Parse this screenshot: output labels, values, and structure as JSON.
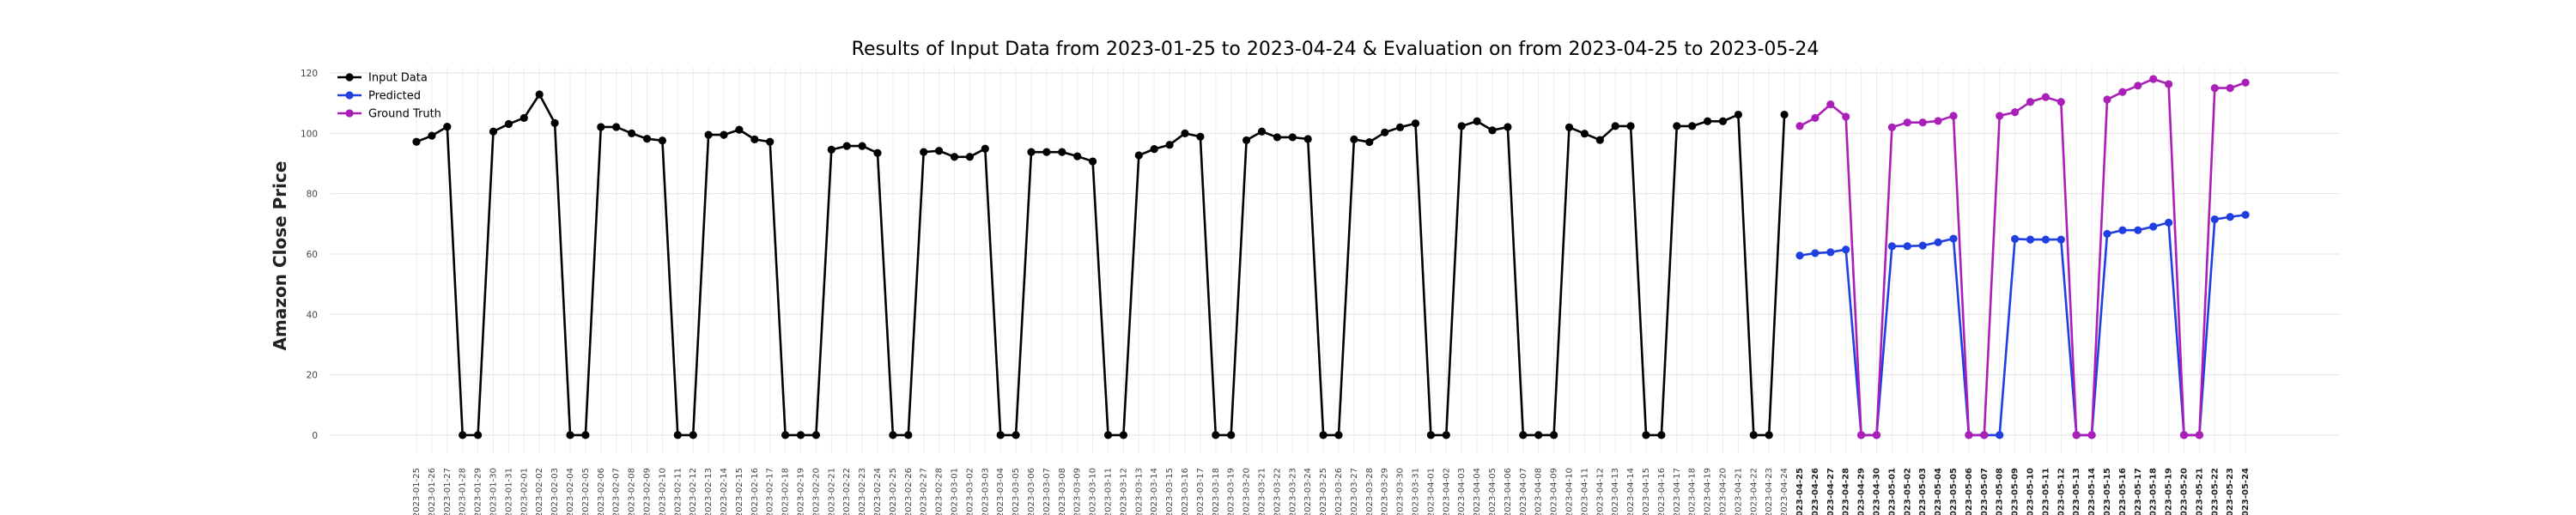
{
  "chart_data": {
    "type": "line",
    "title": "Results of Input Data from 2023-01-25 to 2023-04-24 & Evaluation on from 2023-04-25 to 2023-05-24",
    "xlabel": "",
    "ylabel": "Amazon Close Price",
    "ylim": [
      -6,
      122
    ],
    "yticks": [
      0,
      20,
      40,
      60,
      80,
      100,
      120
    ],
    "grid": true,
    "legend_position": "top-left",
    "x_tick_labels_input": [
      "2023-01-25",
      "2023-01-26",
      "2023-01-27",
      "2023-01-28",
      "2023-01-29",
      "2023-01-30",
      "2023-01-31",
      "2023-02-01",
      "2023-02-02",
      "2023-02-03",
      "2023-02-04",
      "2023-02-05",
      "2023-02-06",
      "2023-02-07",
      "2023-02-08",
      "2023-02-09",
      "2023-02-10",
      "2023-02-11",
      "2023-02-12",
      "2023-02-13",
      "2023-02-14",
      "2023-02-15",
      "2023-02-16",
      "2023-02-17",
      "2023-02-18",
      "2023-02-19",
      "2023-02-20",
      "2023-02-21",
      "2023-02-22",
      "2023-02-23",
      "2023-02-24",
      "2023-02-25",
      "2023-02-26",
      "2023-02-27",
      "2023-02-28",
      "2023-03-01",
      "2023-03-02",
      "2023-03-03",
      "2023-03-04",
      "2023-03-05",
      "2023-03-06",
      "2023-03-07",
      "2023-03-08",
      "2023-03-09",
      "2023-03-10",
      "2023-03-11",
      "2023-03-12",
      "2023-03-13",
      "2023-03-14",
      "2023-03-15",
      "2023-03-16",
      "2023-03-17",
      "2023-03-18",
      "2023-03-19",
      "2023-03-20",
      "2023-03-21",
      "2023-03-22",
      "2023-03-23",
      "2023-03-24",
      "2023-03-25",
      "2023-03-26",
      "2023-03-27",
      "2023-03-28",
      "2023-03-29",
      "2023-03-30",
      "2023-03-31",
      "2023-04-01",
      "2023-04-02",
      "2023-04-03",
      "2023-04-04",
      "2023-04-05",
      "2023-04-06",
      "2023-04-07",
      "2023-04-08",
      "2023-04-09",
      "2023-04-10",
      "2023-04-11",
      "2023-04-12",
      "2023-04-13",
      "2023-04-14",
      "2023-04-15",
      "2023-04-16",
      "2023-04-17",
      "2023-04-18",
      "2023-04-19",
      "2023-04-20",
      "2023-04-21",
      "2023-04-22",
      "2023-04-23",
      "2023-04-24"
    ],
    "x_tick_labels_eval": [
      "2023-04-25",
      "2023-04-26",
      "2023-04-27",
      "2023-04-28",
      "2023-04-29",
      "2023-04-30",
      "2023-05-01",
      "2023-05-02",
      "2023-05-03",
      "2023-05-04",
      "2023-05-05",
      "2023-05-06",
      "2023-05-07",
      "2023-05-08",
      "2023-05-09",
      "2023-05-10",
      "2023-05-11",
      "2023-05-12",
      "2023-05-13",
      "2023-05-14",
      "2023-05-15",
      "2023-05-16",
      "2023-05-17",
      "2023-05-18",
      "2023-05-19",
      "2023-05-20",
      "2023-05-21",
      "2023-05-22",
      "2023-05-23",
      "2023-05-24"
    ],
    "series": [
      {
        "name": "Input Data",
        "color": "#000000",
        "x_start": "2023-01-25",
        "values": [
          97.2,
          99.2,
          102.2,
          0,
          0,
          100.6,
          103.1,
          105.1,
          112.9,
          103.4,
          0,
          0,
          102.1,
          102.1,
          100.0,
          98.2,
          97.6,
          0,
          0,
          99.5,
          99.5,
          101.2,
          98.0,
          97.2,
          0,
          0,
          0,
          94.6,
          95.8,
          95.8,
          93.5,
          0,
          0,
          93.8,
          94.2,
          92.2,
          92.2,
          94.9,
          0,
          0,
          93.8,
          93.8,
          93.8,
          92.4,
          90.7,
          0,
          0,
          92.7,
          94.8,
          96.2,
          100.0,
          98.9,
          0,
          0,
          97.7,
          100.6,
          98.7,
          98.7,
          98.1,
          0,
          0,
          98.0,
          97.1,
          100.3,
          102.0,
          103.3,
          0,
          0,
          102.4,
          104.0,
          101.0,
          102.1,
          0,
          0,
          0,
          102.0,
          99.9,
          97.8,
          102.4,
          102.4,
          0,
          0,
          102.4,
          102.4,
          104.0,
          104.0,
          106.2,
          0,
          0,
          106.2
        ]
      },
      {
        "name": "Predicted",
        "color": "#1f3fe0",
        "x_start": "2023-04-25",
        "values": [
          59.5,
          60.3,
          60.6,
          61.5,
          0,
          0,
          62.6,
          62.6,
          62.8,
          63.9,
          65.1,
          0,
          0,
          0,
          65.0,
          64.8,
          64.8,
          64.8,
          0,
          0,
          66.7,
          67.9,
          67.9,
          69.1,
          70.4,
          0,
          0,
          71.5,
          72.3,
          73.0
        ]
      },
      {
        "name": "Ground Truth",
        "color": "#aa1fb8",
        "x_start": "2023-04-25",
        "values": [
          102.4,
          105.1,
          109.6,
          105.5,
          0,
          0,
          102.0,
          103.6,
          103.6,
          104.1,
          105.8,
          0,
          0,
          105.8,
          107.0,
          110.4,
          112.0,
          110.4,
          0,
          0,
          111.2,
          113.7,
          115.8,
          118.0,
          116.3,
          0,
          0,
          115.0,
          115.0,
          116.8
        ]
      }
    ]
  }
}
